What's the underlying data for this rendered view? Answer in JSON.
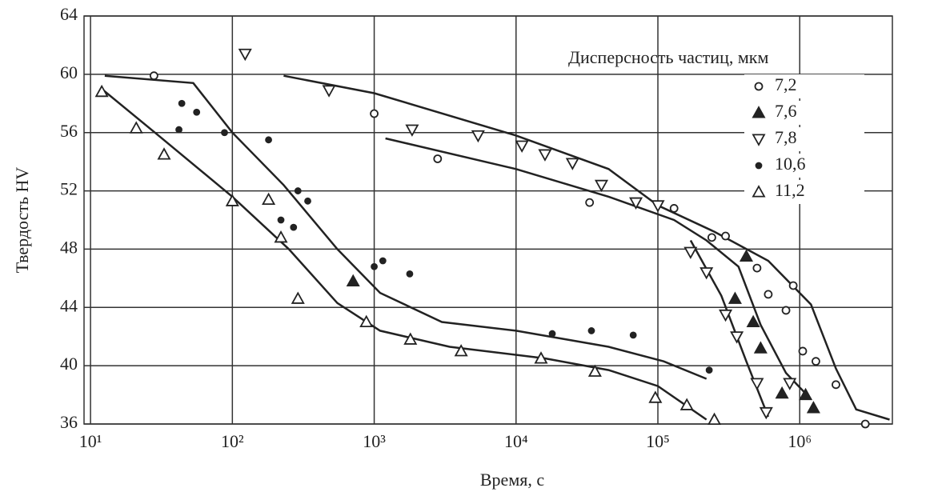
{
  "chart_data": {
    "type": "scatter",
    "x_label": "Время, с",
    "y_label": "Твердость HV",
    "legend_title": "Дисперсность частиц, мкм",
    "legend_position": "upper right",
    "log_x": true,
    "grid": true,
    "xlim": [
      9,
      4500000
    ],
    "ylim": [
      36,
      64
    ],
    "xticks": [
      {
        "value": 10,
        "label": "10¹"
      },
      {
        "value": 100,
        "label": "10²"
      },
      {
        "value": 1000,
        "label": "10³"
      },
      {
        "value": 10000,
        "label": "10⁴"
      },
      {
        "value": 100000,
        "label": "10⁵"
      },
      {
        "value": 1000000,
        "label": "10⁶"
      }
    ],
    "yticks": [
      36,
      40,
      44,
      48,
      52,
      56,
      60,
      64
    ],
    "series": [
      {
        "name": "7,2",
        "marker": "open-circle",
        "color": "#222",
        "x": [
          28,
          1000,
          2800,
          33000,
          130000,
          240000,
          300000,
          500000,
          600000,
          900000,
          800000,
          1050000,
          1300000,
          1800000,
          2900000
        ],
        "values": [
          59.9,
          57.3,
          54.2,
          51.2,
          50.8,
          48.8,
          48.9,
          46.7,
          44.9,
          45.5,
          43.8,
          41.0,
          40.3,
          38.7,
          36.0
        ]
      },
      {
        "name": "7,6",
        "marker": "filled-triangle",
        "color": "#222",
        "x": [
          710,
          420000,
          350000,
          470000,
          530000,
          750000,
          1100000,
          1250000
        ],
        "values": [
          45.8,
          47.5,
          44.6,
          43.0,
          41.2,
          38.1,
          38.0,
          37.1
        ]
      },
      {
        "name": "7,8",
        "marker": "open-triangle-down",
        "color": "#222",
        "x": [
          123,
          480,
          1850,
          5400,
          11000,
          16000,
          25000,
          40000,
          70000,
          100000,
          170000,
          220000,
          300000,
          360000,
          500000,
          580000,
          850000
        ],
        "values": [
          61.4,
          58.9,
          56.2,
          55.8,
          55.1,
          54.5,
          53.9,
          52.4,
          51.2,
          51.0,
          47.8,
          46.4,
          43.5,
          42.0,
          38.8,
          36.8,
          38.8
        ]
      },
      {
        "name": "10,6",
        "marker": "filled-dot",
        "color": "#222",
        "x": [
          44,
          56,
          42,
          88,
          180,
          290,
          340,
          220,
          270,
          1000,
          1150,
          1780,
          18000,
          34000,
          67000,
          230000
        ],
        "values": [
          58.0,
          57.4,
          56.2,
          56.0,
          55.5,
          52.0,
          51.3,
          50.0,
          49.5,
          46.8,
          47.2,
          46.3,
          42.2,
          42.4,
          42.1,
          39.7
        ]
      },
      {
        "name": "11,2",
        "marker": "open-triangle",
        "color": "#222",
        "x": [
          12,
          21,
          33,
          100,
          180,
          220,
          290,
          880,
          1800,
          4100,
          15000,
          36000,
          96000,
          160000,
          250000
        ],
        "values": [
          58.8,
          56.3,
          54.5,
          51.3,
          51.4,
          48.8,
          44.6,
          43.0,
          41.8,
          41.0,
          40.5,
          39.6,
          37.8,
          37.3,
          36.3
        ]
      }
    ],
    "curves": [
      {
        "x": [
          230,
          1000,
          10000,
          45000,
          100000,
          250000,
          600000,
          1200000,
          1800000,
          2500000,
          4300000
        ],
        "values": [
          59.9,
          58.7,
          55.8,
          53.5,
          51.0,
          49.2,
          47.2,
          44.2,
          39.8,
          37.0,
          36.3
        ]
      },
      {
        "x": [
          1200,
          10000,
          45000,
          130000,
          220000,
          370000,
          530000,
          800000,
          1200000
        ],
        "values": [
          55.6,
          53.5,
          51.6,
          50.0,
          48.6,
          46.8,
          42.8,
          39.5,
          37.7
        ]
      },
      {
        "x": [
          170000,
          280000,
          420000,
          600000
        ],
        "values": [
          48.6,
          44.8,
          40.3,
          36.5
        ]
      },
      {
        "x": [
          12.6,
          53,
          100,
          230,
          550,
          1100,
          3000,
          10000,
          45000,
          110000,
          220000
        ],
        "values": [
          59.9,
          59.4,
          56.0,
          52.4,
          48.0,
          45.0,
          43.0,
          42.4,
          41.3,
          40.3,
          39.1
        ]
      },
      {
        "x": [
          12,
          31,
          100,
          250,
          550,
          1100,
          3400,
          16000,
          45000,
          100000,
          220000
        ],
        "values": [
          59.0,
          55.7,
          51.6,
          48.0,
          44.3,
          42.4,
          41.3,
          40.5,
          39.7,
          38.6,
          36.3
        ]
      }
    ]
  }
}
